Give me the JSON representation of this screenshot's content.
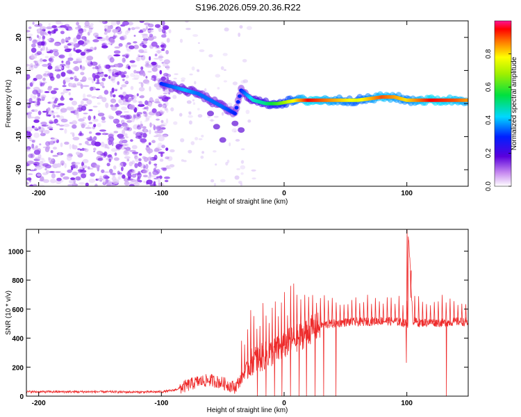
{
  "figure_title": "S196.2026.059.20.36.R22",
  "colors": {
    "line": "#ee2a2a",
    "speckle": "#8a2be2",
    "axis": "#000000",
    "background": "#ffffff"
  },
  "chart_data": [
    {
      "type": "heatmap",
      "id": "spectrogram",
      "xlabel": "Height of straight line (km)",
      "ylabel": "Frequency (Hz)",
      "xlim": [
        -210,
        150
      ],
      "ylim": [
        -25,
        25
      ],
      "xticks": [
        -200,
        -100,
        0,
        100
      ],
      "xtick_labels": [
        "-200",
        "-100",
        "0",
        "100"
      ],
      "yticks": [
        -20,
        -10,
        0,
        10,
        20
      ],
      "ytick_labels": [
        "-20",
        "-10",
        "0",
        "10",
        "20"
      ],
      "colorbar": {
        "label": "Normalized spectral amplitude",
        "range": [
          0,
          1
        ],
        "ticks": [
          0.0,
          0.2,
          0.4,
          0.6,
          0.8
        ],
        "tick_labels": [
          "0.0",
          "0.2",
          "0.4",
          "0.6",
          "0.8"
        ]
      },
      "ridge": [
        {
          "x": -100,
          "y": 6,
          "amp": 0.3
        },
        {
          "x": -90,
          "y": 5,
          "amp": 0.35
        },
        {
          "x": -80,
          "y": 4,
          "amp": 0.4
        },
        {
          "x": -70,
          "y": 3,
          "amp": 0.35
        },
        {
          "x": -60,
          "y": 1,
          "amp": 0.35
        },
        {
          "x": -50,
          "y": -1,
          "amp": 0.35
        },
        {
          "x": -40,
          "y": -3,
          "amp": 0.3
        },
        {
          "x": -35,
          "y": 4,
          "amp": 0.3
        },
        {
          "x": -25,
          "y": 1,
          "amp": 0.45
        },
        {
          "x": -15,
          "y": 0,
          "amp": 0.5
        },
        {
          "x": -5,
          "y": 0,
          "amp": 0.6
        },
        {
          "x": 10,
          "y": 1,
          "amp": 0.8
        },
        {
          "x": 20,
          "y": 1,
          "amp": 0.95
        },
        {
          "x": 40,
          "y": 1,
          "amp": 0.85
        },
        {
          "x": 60,
          "y": 1,
          "amp": 0.75
        },
        {
          "x": 80,
          "y": 2,
          "amp": 0.9
        },
        {
          "x": 90,
          "y": 2,
          "amp": 0.85
        },
        {
          "x": 100,
          "y": 1,
          "amp": 0.8
        },
        {
          "x": 120,
          "y": 1,
          "amp": 0.95
        },
        {
          "x": 140,
          "y": 1,
          "amp": 0.9
        },
        {
          "x": 150,
          "y": 1,
          "amp": 0.85
        }
      ]
    },
    {
      "type": "line",
      "id": "snr",
      "xlabel": "Height of straight line (km)",
      "ylabel": "SNR (10 * v/v)",
      "xlim": [
        -210,
        150
      ],
      "ylim": [
        0,
        1150
      ],
      "xticks": [
        -200,
        -100,
        0,
        100
      ],
      "xtick_labels": [
        "-200",
        "-100",
        "0",
        "100"
      ],
      "yticks": [
        0,
        200,
        400,
        600,
        800,
        1000
      ],
      "ytick_labels": [
        "0",
        "200",
        "400",
        "600",
        "800",
        "1000"
      ],
      "series": [
        {
          "name": "SNR",
          "x": [
            -210,
            -180,
            -150,
            -120,
            -100,
            -90,
            -80,
            -70,
            -60,
            -50,
            -40,
            -35,
            -30,
            -25,
            -20,
            -15,
            -10,
            -5,
            0,
            5,
            10,
            15,
            20,
            25,
            30,
            40,
            50,
            60,
            70,
            80,
            90,
            95,
            100,
            101,
            105,
            110,
            120,
            130,
            140,
            150
          ],
          "y": [
            30,
            30,
            30,
            28,
            30,
            40,
            70,
            100,
            110,
            90,
            60,
            120,
            200,
            250,
            260,
            280,
            300,
            320,
            350,
            380,
            400,
            420,
            450,
            470,
            490,
            500,
            510,
            510,
            515,
            520,
            515,
            510,
            500,
            1150,
            520,
            505,
            510,
            505,
            515,
            510
          ]
        }
      ]
    }
  ]
}
